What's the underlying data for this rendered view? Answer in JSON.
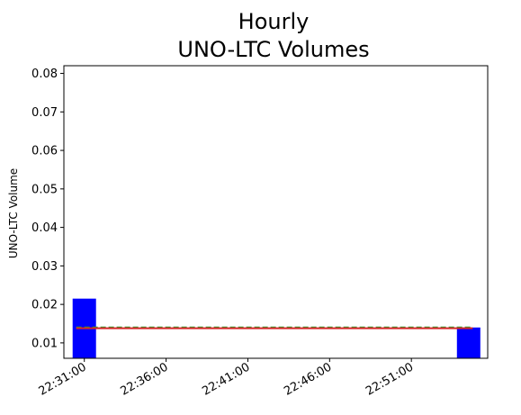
{
  "chart_data": {
    "type": "bar",
    "title_line1": "Hourly",
    "title_line2": "UNO-LTC Volumes",
    "xlabel": "",
    "ylabel": "UNO-LTC Volume",
    "ylim": [
      0.006,
      0.082
    ],
    "xlim": [
      "22:29:45",
      "22:55:40"
    ],
    "yticks": [
      0.01,
      0.02,
      0.03,
      0.04,
      0.05,
      0.06,
      0.07,
      0.08
    ],
    "xticks": [
      "22:31:00",
      "22:36:00",
      "22:41:00",
      "22:46:00",
      "22:51:00"
    ],
    "bars": [
      {
        "x": "22:31:00",
        "value": 0.0215,
        "color": "#0000ff"
      },
      {
        "x": "22:54:30",
        "value": 0.014,
        "color": "#0000ff"
      }
    ],
    "lines": [
      {
        "name": "",
        "style": "dashed",
        "color": "#2ca02c",
        "y": 0.014,
        "x_start": "22:30:30",
        "x_end": "22:54:45"
      },
      {
        "name": "",
        "style": "solid",
        "color": "#d62728",
        "y": 0.0138,
        "x_start": "22:30:30",
        "x_end": "22:54:45"
      }
    ],
    "grid": false
  }
}
